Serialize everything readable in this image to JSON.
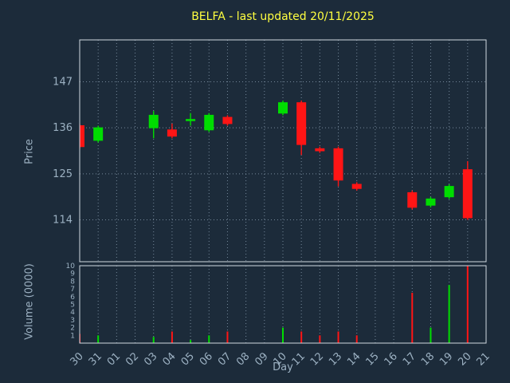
{
  "title": "BELFA - last updated 20/11/2025",
  "axes": {
    "price": {
      "label": "Price",
      "ticks": [
        147,
        136,
        125,
        114
      ],
      "min": 104,
      "max": 157
    },
    "volume": {
      "label": "Volume (0000)",
      "ticks": [
        10,
        9,
        8,
        7,
        6,
        5,
        4,
        3,
        2,
        1
      ],
      "min": 0,
      "max": 10
    },
    "x": {
      "label": "Day"
    }
  },
  "colors": {
    "background": "#1c2b3a",
    "title": "#ffff40",
    "text": "#9cb1c2",
    "grid": "#75889a",
    "border": "#cfd8e0",
    "up": "#00dd00",
    "down": "#ff1515"
  },
  "chart_data": {
    "type": "candlestick+volume",
    "title": "BELFA - last updated 20/11/2025",
    "xlabel": "Day",
    "ylabel_price": "Price",
    "ylabel_volume": "Volume (0000)",
    "price_range": [
      104,
      157
    ],
    "volume_range": [
      0,
      10
    ],
    "grid": "dotted",
    "x_categories": [
      "30",
      "31",
      "01",
      "02",
      "03",
      "04",
      "05",
      "06",
      "07",
      "08",
      "09",
      "10",
      "11",
      "12",
      "13",
      "14",
      "15",
      "16",
      "17",
      "18",
      "19",
      "20",
      "21"
    ],
    "candles": [
      {
        "day": "30",
        "open": 136.5,
        "high": 137.0,
        "low": 131.0,
        "close": 131.5
      },
      {
        "day": "31",
        "open": 133.0,
        "high": 136.5,
        "low": 132.5,
        "close": 136.0
      },
      {
        "day": "03",
        "open": 136.0,
        "high": 140.0,
        "low": 133.5,
        "close": 139.0
      },
      {
        "day": "04",
        "open": 135.5,
        "high": 137.0,
        "low": 133.5,
        "close": 134.0
      },
      {
        "day": "05",
        "open": 138.0,
        "high": 139.5,
        "low": 136.5,
        "close": 138.0
      },
      {
        "day": "06",
        "open": 135.5,
        "high": 139.5,
        "low": 135.0,
        "close": 139.0
      },
      {
        "day": "07",
        "open": 138.5,
        "high": 139.0,
        "low": 136.5,
        "close": 137.0
      },
      {
        "day": "10",
        "open": 139.5,
        "high": 142.5,
        "low": 139.0,
        "close": 142.0
      },
      {
        "day": "11",
        "open": 142.0,
        "high": 142.5,
        "low": 129.5,
        "close": 132.0
      },
      {
        "day": "12",
        "open": 131.0,
        "high": 131.5,
        "low": 130.0,
        "close": 130.5
      },
      {
        "day": "13",
        "open": 131.0,
        "high": 131.5,
        "low": 122.0,
        "close": 123.5
      },
      {
        "day": "14",
        "open": 122.5,
        "high": 123.0,
        "low": 121.0,
        "close": 121.5
      },
      {
        "day": "17",
        "open": 120.5,
        "high": 121.0,
        "low": 116.5,
        "close": 117.0
      },
      {
        "day": "18",
        "open": 117.5,
        "high": 119.5,
        "low": 117.0,
        "close": 119.0
      },
      {
        "day": "19",
        "open": 119.5,
        "high": 122.5,
        "low": 119.0,
        "close": 122.0
      },
      {
        "day": "20",
        "open": 126.0,
        "high": 128.0,
        "low": 114.0,
        "close": 114.5
      }
    ],
    "volumes": [
      {
        "day": "30",
        "value": 1.2
      },
      {
        "day": "31",
        "value": 1.0
      },
      {
        "day": "03",
        "value": 0.8
      },
      {
        "day": "04",
        "value": 1.5
      },
      {
        "day": "05",
        "value": 0.4
      },
      {
        "day": "06",
        "value": 1.0
      },
      {
        "day": "07",
        "value": 1.5
      },
      {
        "day": "10",
        "value": 2.0
      },
      {
        "day": "11",
        "value": 1.5
      },
      {
        "day": "12",
        "value": 1.0
      },
      {
        "day": "13",
        "value": 1.5
      },
      {
        "day": "14",
        "value": 1.0
      },
      {
        "day": "17",
        "value": 6.5
      },
      {
        "day": "18",
        "value": 2.0
      },
      {
        "day": "19",
        "value": 7.5
      },
      {
        "day": "20",
        "value": 10.0
      }
    ]
  }
}
